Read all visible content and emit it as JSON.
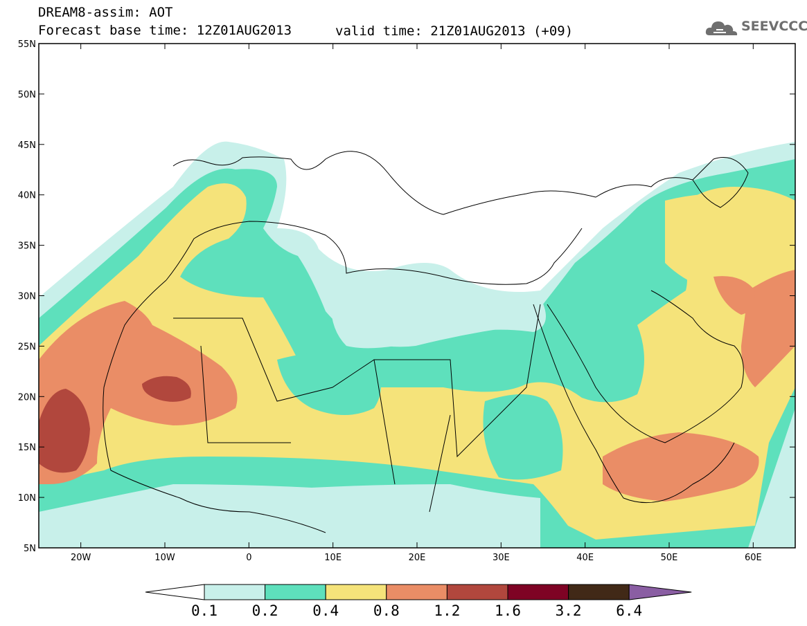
{
  "title": "DREAM8-assim: AOT",
  "forecast_base": "Forecast base time: 12Z01AUG2013",
  "valid_time": "valid time: 21Z01AUG2013 (+09)",
  "logo_text": "SEEVCCC",
  "lat_labels": [
    "55N",
    "50N",
    "45N",
    "40N",
    "35N",
    "30N",
    "25N",
    "20N",
    "15N",
    "10N",
    "5N"
  ],
  "lon_labels": [
    "20W",
    "10W",
    "0",
    "10E",
    "20E",
    "30E",
    "40E",
    "50E",
    "60E"
  ],
  "colorbar": {
    "labels": [
      "0.1",
      "0.2",
      "0.4",
      "0.8",
      "1.2",
      "1.6",
      "3.2",
      "6.4"
    ],
    "colors": [
      "#ffffff",
      "#c8f0ea",
      "#5ee0bc",
      "#f5e37a",
      "#ea8d66",
      "#b1473d",
      "#7e0324",
      "#412917",
      "#8a5ea3"
    ]
  }
}
